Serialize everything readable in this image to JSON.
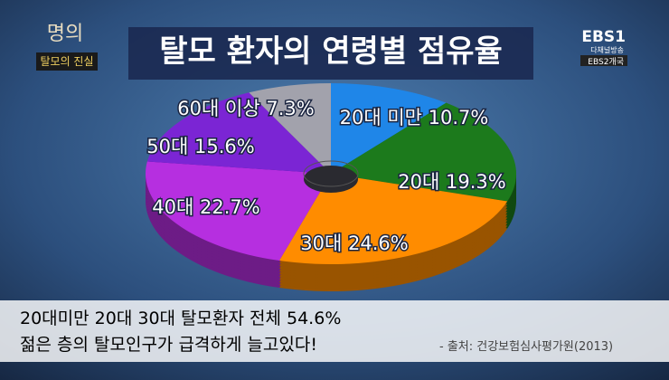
{
  "logo": {
    "program": "명의",
    "episode": "탈모의 진실"
  },
  "channel": {
    "name": "EBS1",
    "sub1": "다채널방송",
    "sub2": "EBS2개국"
  },
  "chart_data": {
    "type": "pie",
    "title": "탈모 환자의 연령별 점유율",
    "categories": [
      "20대 미만",
      "20대",
      "30대",
      "40대",
      "50대",
      "60대 이상"
    ],
    "values": [
      10.7,
      19.3,
      24.6,
      22.7,
      15.6,
      7.3
    ],
    "value_labels": [
      "10.7%",
      "19.3%",
      "24.6%",
      "22.7%",
      "15.6%",
      "7.3%"
    ],
    "colors": [
      "#1f86e8",
      "#1c7a1c",
      "#ff8c00",
      "#b62fe0",
      "#7b25d4",
      "#a2a2ac"
    ]
  },
  "caption": {
    "line1": "20대미만 20대 30대 탈모환자 전체 54.6%",
    "line2": "젊은 층의 탈모인구가 급격하게 늘고있다!",
    "source": "- 출처: 건강보험심사평가원(2013)"
  }
}
